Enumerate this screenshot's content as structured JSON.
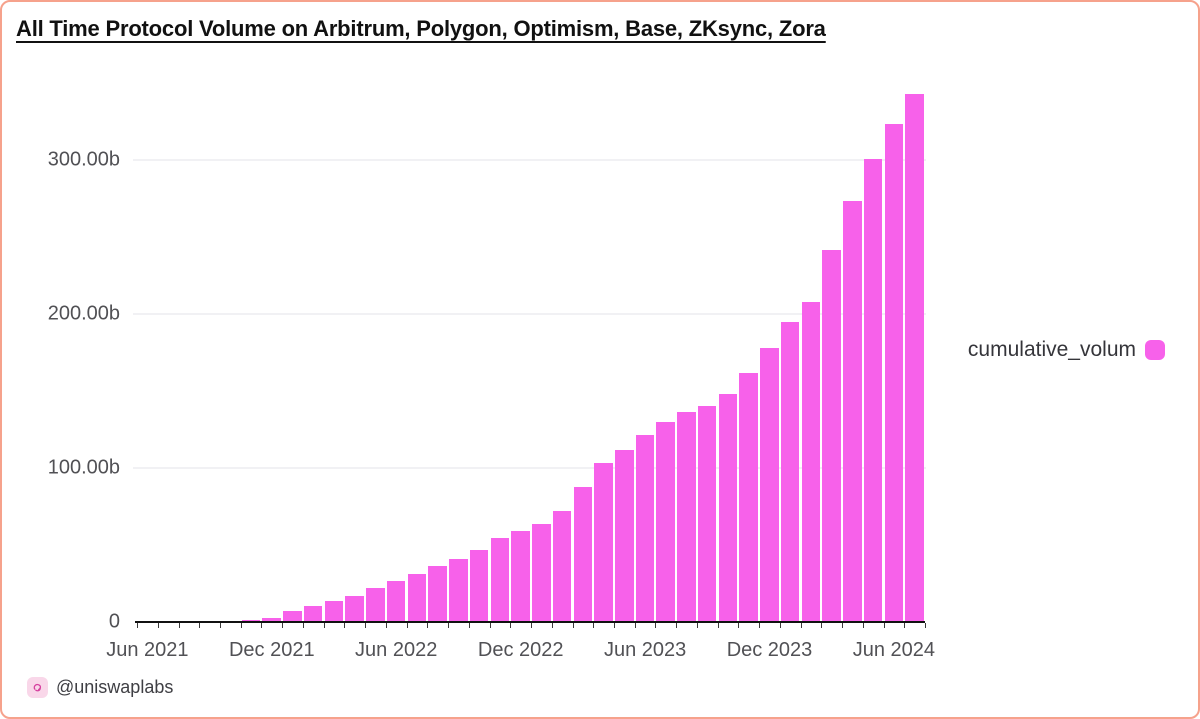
{
  "page": {
    "attribution": {
      "handle": "@uniswaplabs",
      "icon": "uniswap-labs-logo"
    }
  },
  "theme": {
    "border": "#f6a28c",
    "bar": "#f761ea",
    "grid": "#f1f1f4",
    "axis": "#111111",
    "tick_label": "#515155",
    "title": "#111111",
    "legend_text": "#35353a",
    "attribution_text": "#3f3f44",
    "icon_bg": "#f9d7e9",
    "icon_glyph": "#d6409f"
  },
  "chart_data": {
    "type": "bar",
    "title": "All Time Protocol Volume on Arbitrum, Polygon, Optimism, Base, ZKsync, Zora",
    "series": [
      {
        "name": "cumulative_volum",
        "color": "#f761ea"
      }
    ],
    "unit": "billions",
    "x": [
      "Jun 2021",
      "Jul 2021",
      "Aug 2021",
      "Sep 2021",
      "Oct 2021",
      "Nov 2021",
      "Dec 2021",
      "Jan 2022",
      "Feb 2022",
      "Mar 2022",
      "Apr 2022",
      "May 2022",
      "Jun 2022",
      "Jul 2022",
      "Aug 2022",
      "Sep 2022",
      "Oct 2022",
      "Nov 2022",
      "Dec 2022",
      "Jan 2023",
      "Feb 2023",
      "Mar 2023",
      "Apr 2023",
      "May 2023",
      "Jun 2023",
      "Jul 2023",
      "Aug 2023",
      "Sep 2023",
      "Oct 2023",
      "Nov 2023",
      "Dec 2023",
      "Jan 2024",
      "Feb 2024",
      "Mar 2024",
      "Apr 2024",
      "May 2024",
      "Jun 2024",
      "Jul 2024"
    ],
    "values": [
      0.05,
      0.1,
      0.2,
      0.3,
      0.5,
      1.4,
      2.9,
      7.0,
      10.5,
      13.5,
      17.0,
      21.8,
      26.8,
      31.0,
      36.4,
      41.0,
      46.5,
      54.5,
      58.8,
      63.7,
      71.8,
      88.0,
      103.3,
      111.5,
      121.7,
      130.0,
      136.5,
      140.5,
      148.3,
      162.0,
      178.2,
      195.0,
      208.0,
      241.6,
      273.7,
      300.4,
      323.6,
      342.8
    ],
    "x_tick_labels": [
      "Jun 2021",
      "Dec 2021",
      "Jun 2022",
      "Dec 2022",
      "Jun 2023",
      "Dec 2023",
      "Jun 2024"
    ],
    "x_tick_indices": [
      0,
      6,
      12,
      18,
      24,
      30,
      36
    ],
    "y_ticks": [
      {
        "value": 0,
        "label": "0"
      },
      {
        "value": 100,
        "label": "100.00b"
      },
      {
        "value": 200,
        "label": "200.00b"
      },
      {
        "value": 300,
        "label": "300.00b"
      }
    ],
    "ylim": [
      0,
      350
    ],
    "grid": true,
    "legend_position": "right-middle"
  }
}
